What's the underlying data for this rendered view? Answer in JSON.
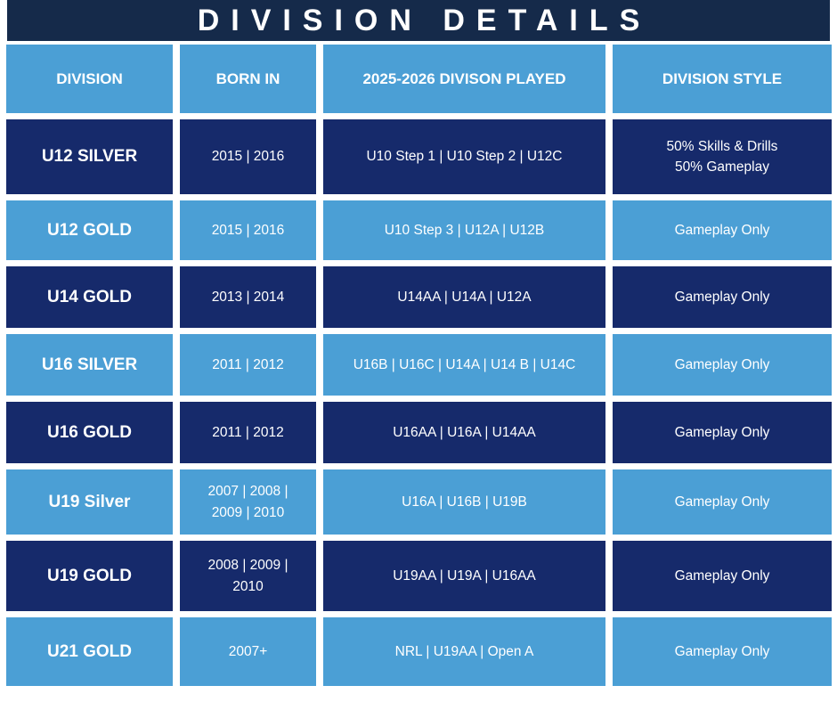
{
  "title": "DIVISION DETAILS",
  "headers": [
    "DIVISION",
    "BORN IN",
    "2025-2026 DIVISON PLAYED",
    "DIVISION STYLE"
  ],
  "rows": [
    {
      "division": "U12 SILVER",
      "born_in": "2015  |  2016",
      "played": "U10 Step 1  |   U10 Step 2  |  U12C",
      "style": "50% Skills & Drills\n50% Gameplay"
    },
    {
      "division": "U12 GOLD",
      "born_in": "2015  |  2016",
      "played": "U10 Step 3  |  U12A  |  U12B",
      "style": "Gameplay Only"
    },
    {
      "division": "U14 GOLD",
      "born_in": "2013  |  2014",
      "played": "U14AA  |  U14A  | U12A",
      "style": "Gameplay Only"
    },
    {
      "division": "U16 SILVER",
      "born_in": "2011  |  2012",
      "played": "U16B  | U16C  | U14A  | U14 B  |  U14C",
      "style": "Gameplay Only"
    },
    {
      "division": "U16 GOLD",
      "born_in": "2011  | 2012",
      "played": "U16AA  | U16A  | U14AA",
      "style": "Gameplay Only"
    },
    {
      "division": "U19 Silver",
      "born_in": "2007  |  2008  |\n2009  |  2010",
      "played": "U16A  |  U16B  |  U19B",
      "style": "Gameplay Only"
    },
    {
      "division": "U19 GOLD",
      "born_in": "2008  |  2009  |\n2010",
      "played": "U19AA  | U19A  | U16AA",
      "style": "Gameplay Only"
    },
    {
      "division": "U21 GOLD",
      "born_in": "2007+",
      "played": "NRL  |  U19AA  |  Open A",
      "style": "Gameplay Only"
    }
  ]
}
